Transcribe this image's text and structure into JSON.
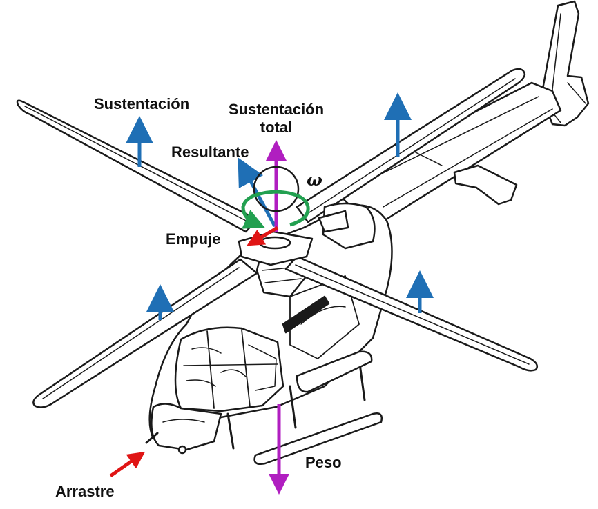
{
  "labels": {
    "lift": "Sustentación",
    "total_lift_line1": "Sustentación",
    "total_lift_line2": "total",
    "resultant": "Resultante",
    "omega": "ω",
    "thrust": "Empuje",
    "weight": "Peso",
    "drag": "Arrastre"
  },
  "colors": {
    "lift": "#1f6fb5",
    "total_lift": "#b01ec0",
    "resultant": "#1f6fb5",
    "rotation": "#22a050",
    "thrust": "#e01515",
    "drag": "#e01515",
    "weight": "#b01ec0",
    "outline": "#1a1a1a"
  },
  "icons": {
    "vehicle": "helicopter-line-drawing",
    "rotation": "circular-arrow-icon"
  }
}
